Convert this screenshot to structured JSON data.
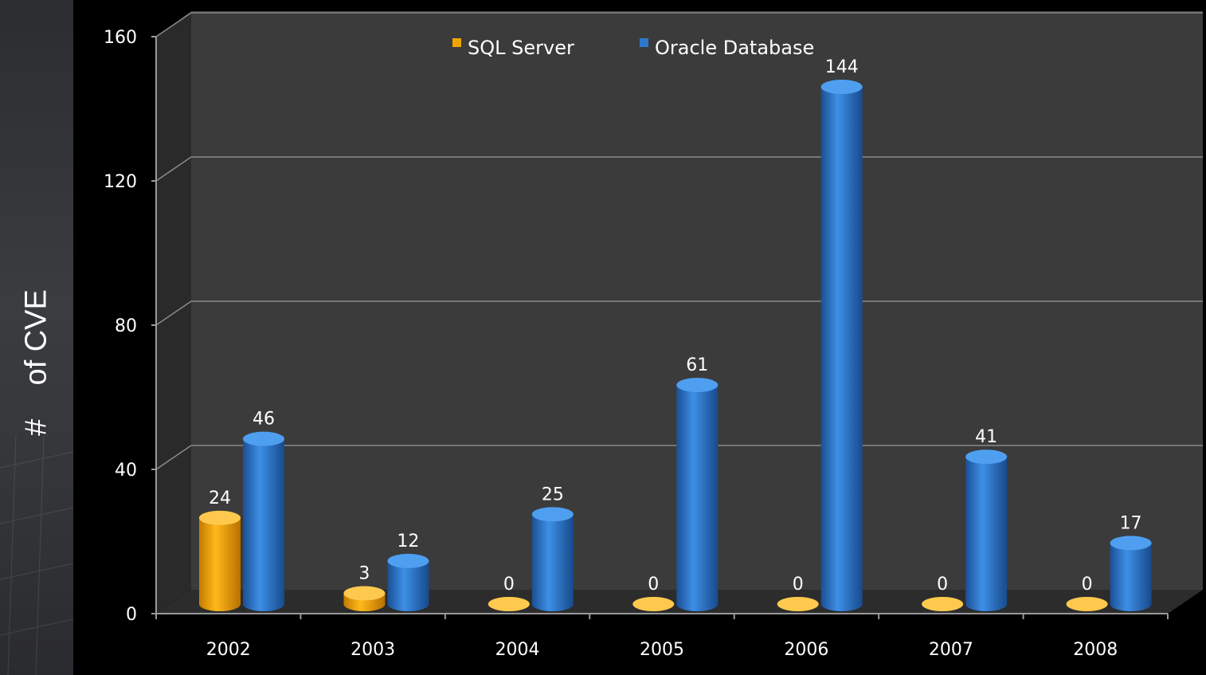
{
  "chart_data": {
    "type": "bar",
    "title": "",
    "xlabel": "",
    "ylabel": "#    of CVE",
    "categories": [
      "2002",
      "2003",
      "2004",
      "2005",
      "2006",
      "2007",
      "2008"
    ],
    "series": [
      {
        "name": "SQL Server",
        "values": [
          24,
          3,
          0,
          0,
          0,
          0,
          0
        ],
        "color": "#f0a400"
      },
      {
        "name": "Oracle Database",
        "values": [
          46,
          12,
          25,
          61,
          144,
          41,
          17
        ],
        "color": "#2f78cc"
      }
    ],
    "ylim": [
      0,
      160
    ],
    "yticks": [
      "0",
      "40",
      "80",
      "120",
      "160"
    ],
    "legend_position": "top",
    "grid": true,
    "style": "3d-cylinder"
  }
}
